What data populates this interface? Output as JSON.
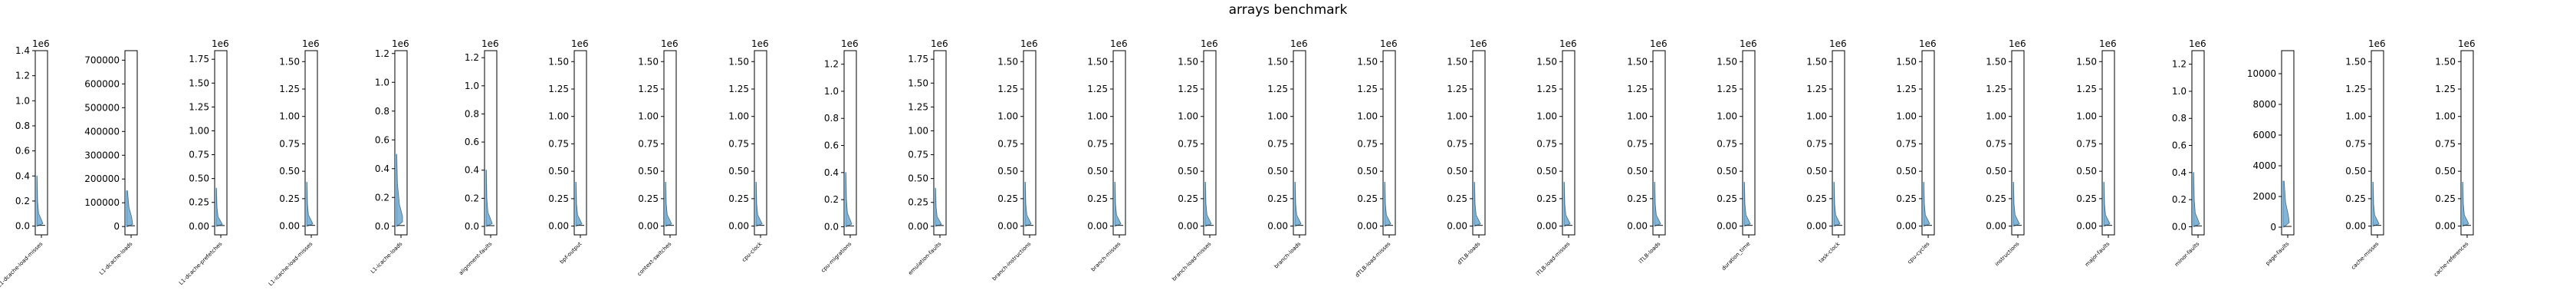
{
  "chart_data": {
    "type": "box",
    "title": "arrays benchmark",
    "color": "#1f77b4",
    "panels": [
      {
        "label": "L1-dcache-load-misses",
        "exp": "1e6",
        "ylim": [
          -0.07,
          1.4
        ],
        "ticks": [
          0.0,
          0.2,
          0.4,
          0.6,
          0.8,
          1.0,
          1.2,
          1.4
        ],
        "fmt": 1,
        "dist": [
          [
            0,
            3
          ],
          [
            0.02,
            40
          ],
          [
            0.05,
            30
          ],
          [
            0.1,
            12
          ],
          [
            0.2,
            5
          ],
          [
            0.4,
            2
          ]
        ]
      },
      {
        "label": "L1-dcache-loads",
        "exp": "",
        "ylim": [
          -35000,
          740000
        ],
        "ticks": [
          0,
          100000,
          200000,
          300000,
          400000,
          500000,
          600000,
          700000
        ],
        "fmt": 0,
        "dist": [
          [
            0,
            5
          ],
          [
            10000,
            30
          ],
          [
            40000,
            25
          ],
          [
            80000,
            12
          ],
          [
            150000,
            5
          ]
        ]
      },
      {
        "label": "L1-dcache-prefetches",
        "exp": "1e6",
        "ylim": [
          -0.09,
          1.84
        ],
        "ticks": [
          0.0,
          0.25,
          0.5,
          0.75,
          1.0,
          1.25,
          1.5,
          1.75
        ],
        "fmt": 2,
        "dist": [
          [
            0,
            3
          ],
          [
            0.02,
            40
          ],
          [
            0.05,
            30
          ],
          [
            0.1,
            12
          ],
          [
            0.2,
            5
          ],
          [
            0.4,
            2
          ]
        ]
      },
      {
        "label": "L1-icache-load-misses",
        "exp": "1e6",
        "ylim": [
          -0.08,
          1.6
        ],
        "ticks": [
          0.0,
          0.25,
          0.5,
          0.75,
          1.0,
          1.25,
          1.5
        ],
        "fmt": 2,
        "dist": [
          [
            0,
            3
          ],
          [
            0.02,
            40
          ],
          [
            0.05,
            30
          ],
          [
            0.1,
            12
          ],
          [
            0.2,
            5
          ],
          [
            0.4,
            2
          ]
        ]
      },
      {
        "label": "L1-icache-loads",
        "exp": "1e6",
        "ylim": [
          -0.06,
          1.22
        ],
        "ticks": [
          0.0,
          0.2,
          0.4,
          0.6,
          0.8,
          1.0,
          1.2
        ],
        "fmt": 1,
        "dist": [
          [
            0,
            3
          ],
          [
            0.03,
            30
          ],
          [
            0.07,
            30
          ],
          [
            0.15,
            15
          ],
          [
            0.3,
            5
          ],
          [
            0.5,
            2
          ]
        ]
      },
      {
        "label": "alignment-faults",
        "exp": "1e6",
        "ylim": [
          -0.06,
          1.25
        ],
        "ticks": [
          0.0,
          0.2,
          0.4,
          0.6,
          0.8,
          1.0,
          1.2
        ],
        "fmt": 1,
        "dist": [
          [
            0,
            3
          ],
          [
            0.02,
            40
          ],
          [
            0.05,
            30
          ],
          [
            0.1,
            12
          ],
          [
            0.2,
            5
          ],
          [
            0.4,
            2
          ]
        ]
      },
      {
        "label": "bpf-output",
        "exp": "1e6",
        "ylim": [
          -0.08,
          1.6
        ],
        "ticks": [
          0.0,
          0.25,
          0.5,
          0.75,
          1.0,
          1.25,
          1.5
        ],
        "fmt": 2,
        "dist": [
          [
            0,
            3
          ],
          [
            0.02,
            40
          ],
          [
            0.05,
            30
          ],
          [
            0.1,
            12
          ],
          [
            0.2,
            5
          ],
          [
            0.4,
            2
          ]
        ]
      },
      {
        "label": "context-switches",
        "exp": "1e6",
        "ylim": [
          -0.08,
          1.6
        ],
        "ticks": [
          0.0,
          0.25,
          0.5,
          0.75,
          1.0,
          1.25,
          1.5
        ],
        "fmt": 2,
        "dist": [
          [
            0,
            3
          ],
          [
            0.02,
            40
          ],
          [
            0.05,
            30
          ],
          [
            0.1,
            12
          ],
          [
            0.2,
            5
          ],
          [
            0.4,
            2
          ]
        ]
      },
      {
        "label": "cpu-clock",
        "exp": "1e6",
        "ylim": [
          -0.08,
          1.6
        ],
        "ticks": [
          0.0,
          0.25,
          0.5,
          0.75,
          1.0,
          1.25,
          1.5
        ],
        "fmt": 2,
        "dist": [
          [
            0,
            3
          ],
          [
            0.02,
            40
          ],
          [
            0.05,
            30
          ],
          [
            0.1,
            12
          ],
          [
            0.2,
            5
          ],
          [
            0.4,
            2
          ]
        ]
      },
      {
        "label": "cpu-migrations",
        "exp": "1e6",
        "ylim": [
          -0.06,
          1.3
        ],
        "ticks": [
          0.0,
          0.2,
          0.4,
          0.6,
          0.8,
          1.0,
          1.2
        ],
        "fmt": 1,
        "dist": [
          [
            0,
            3
          ],
          [
            0.02,
            40
          ],
          [
            0.05,
            30
          ],
          [
            0.1,
            12
          ],
          [
            0.2,
            5
          ],
          [
            0.4,
            2
          ]
        ]
      },
      {
        "label": "emulation-faults",
        "exp": "1e6",
        "ylim": [
          -0.09,
          1.84
        ],
        "ticks": [
          0.0,
          0.25,
          0.5,
          0.75,
          1.0,
          1.25,
          1.5,
          1.75
        ],
        "fmt": 2,
        "dist": [
          [
            0,
            3
          ],
          [
            0.02,
            40
          ],
          [
            0.05,
            30
          ],
          [
            0.1,
            12
          ],
          [
            0.2,
            5
          ],
          [
            0.4,
            2
          ]
        ]
      },
      {
        "label": "branch-instructions",
        "exp": "1e6",
        "ylim": [
          -0.08,
          1.6
        ],
        "ticks": [
          0.0,
          0.25,
          0.5,
          0.75,
          1.0,
          1.25,
          1.5
        ],
        "fmt": 2,
        "dist": [
          [
            0,
            3
          ],
          [
            0.02,
            40
          ],
          [
            0.05,
            30
          ],
          [
            0.1,
            12
          ],
          [
            0.2,
            5
          ],
          [
            0.4,
            2
          ]
        ]
      },
      {
        "label": "branch-misses",
        "exp": "1e6",
        "ylim": [
          -0.08,
          1.6
        ],
        "ticks": [
          0.0,
          0.25,
          0.5,
          0.75,
          1.0,
          1.25,
          1.5
        ],
        "fmt": 2,
        "dist": [
          [
            0,
            3
          ],
          [
            0.02,
            40
          ],
          [
            0.05,
            30
          ],
          [
            0.1,
            12
          ],
          [
            0.2,
            5
          ],
          [
            0.4,
            2
          ]
        ]
      },
      {
        "label": "branch-load-misses",
        "exp": "1e6",
        "ylim": [
          -0.08,
          1.6
        ],
        "ticks": [
          0.0,
          0.25,
          0.5,
          0.75,
          1.0,
          1.25,
          1.5
        ],
        "fmt": 2,
        "dist": [
          [
            0,
            3
          ],
          [
            0.02,
            40
          ],
          [
            0.05,
            30
          ],
          [
            0.1,
            12
          ],
          [
            0.2,
            5
          ],
          [
            0.4,
            2
          ]
        ]
      },
      {
        "label": "branch-loads",
        "exp": "1e6",
        "ylim": [
          -0.08,
          1.6
        ],
        "ticks": [
          0.0,
          0.25,
          0.5,
          0.75,
          1.0,
          1.25,
          1.5
        ],
        "fmt": 2,
        "dist": [
          [
            0,
            3
          ],
          [
            0.02,
            40
          ],
          [
            0.05,
            30
          ],
          [
            0.1,
            12
          ],
          [
            0.2,
            5
          ],
          [
            0.4,
            2
          ]
        ]
      },
      {
        "label": "dTLB-load-misses",
        "exp": "1e6",
        "ylim": [
          -0.08,
          1.6
        ],
        "ticks": [
          0.0,
          0.25,
          0.5,
          0.75,
          1.0,
          1.25,
          1.5
        ],
        "fmt": 2,
        "dist": [
          [
            0,
            3
          ],
          [
            0.02,
            40
          ],
          [
            0.05,
            30
          ],
          [
            0.1,
            12
          ],
          [
            0.2,
            5
          ],
          [
            0.4,
            2
          ]
        ]
      },
      {
        "label": "dTLB-loads",
        "exp": "1e6",
        "ylim": [
          -0.08,
          1.6
        ],
        "ticks": [
          0.0,
          0.25,
          0.5,
          0.75,
          1.0,
          1.25,
          1.5
        ],
        "fmt": 2,
        "dist": [
          [
            0,
            3
          ],
          [
            0.02,
            40
          ],
          [
            0.05,
            30
          ],
          [
            0.1,
            12
          ],
          [
            0.2,
            5
          ],
          [
            0.4,
            2
          ]
        ]
      },
      {
        "label": "iTLB-load-misses",
        "exp": "1e6",
        "ylim": [
          -0.08,
          1.6
        ],
        "ticks": [
          0.0,
          0.25,
          0.5,
          0.75,
          1.0,
          1.25,
          1.5
        ],
        "fmt": 2,
        "dist": [
          [
            0,
            3
          ],
          [
            0.02,
            40
          ],
          [
            0.05,
            30
          ],
          [
            0.1,
            12
          ],
          [
            0.2,
            5
          ],
          [
            0.4,
            2
          ]
        ]
      },
      {
        "label": "iTLB-loads",
        "exp": "1e6",
        "ylim": [
          -0.08,
          1.6
        ],
        "ticks": [
          0.0,
          0.25,
          0.5,
          0.75,
          1.0,
          1.25,
          1.5
        ],
        "fmt": 2,
        "dist": [
          [
            0,
            3
          ],
          [
            0.02,
            40
          ],
          [
            0.05,
            30
          ],
          [
            0.1,
            12
          ],
          [
            0.2,
            5
          ],
          [
            0.4,
            2
          ]
        ]
      },
      {
        "label": "duration_time",
        "exp": "1e6",
        "ylim": [
          -0.08,
          1.6
        ],
        "ticks": [
          0.0,
          0.25,
          0.5,
          0.75,
          1.0,
          1.25,
          1.5
        ],
        "fmt": 2,
        "dist": [
          [
            0,
            3
          ],
          [
            0.02,
            40
          ],
          [
            0.05,
            30
          ],
          [
            0.1,
            12
          ],
          [
            0.2,
            5
          ],
          [
            0.4,
            2
          ]
        ]
      },
      {
        "label": "task-clock",
        "exp": "1e6",
        "ylim": [
          -0.08,
          1.6
        ],
        "ticks": [
          0.0,
          0.25,
          0.5,
          0.75,
          1.0,
          1.25,
          1.5
        ],
        "fmt": 2,
        "dist": [
          [
            0,
            3
          ],
          [
            0.02,
            40
          ],
          [
            0.05,
            30
          ],
          [
            0.1,
            12
          ],
          [
            0.2,
            5
          ],
          [
            0.4,
            2
          ]
        ]
      },
      {
        "label": "cpu-cycles",
        "exp": "1e6",
        "ylim": [
          -0.08,
          1.6
        ],
        "ticks": [
          0.0,
          0.25,
          0.5,
          0.75,
          1.0,
          1.25,
          1.5
        ],
        "fmt": 2,
        "dist": [
          [
            0,
            3
          ],
          [
            0.02,
            40
          ],
          [
            0.05,
            30
          ],
          [
            0.1,
            12
          ],
          [
            0.2,
            5
          ],
          [
            0.4,
            2
          ]
        ]
      },
      {
        "label": "instructions",
        "exp": "1e6",
        "ylim": [
          -0.08,
          1.6
        ],
        "ticks": [
          0.0,
          0.25,
          0.5,
          0.75,
          1.0,
          1.25,
          1.5
        ],
        "fmt": 2,
        "dist": [
          [
            0,
            3
          ],
          [
            0.02,
            40
          ],
          [
            0.05,
            30
          ],
          [
            0.1,
            12
          ],
          [
            0.2,
            5
          ],
          [
            0.4,
            2
          ]
        ]
      },
      {
        "label": "major-faults",
        "exp": "1e6",
        "ylim": [
          -0.08,
          1.6
        ],
        "ticks": [
          0.0,
          0.25,
          0.5,
          0.75,
          1.0,
          1.25,
          1.5
        ],
        "fmt": 2,
        "dist": [
          [
            0,
            3
          ],
          [
            0.02,
            40
          ],
          [
            0.05,
            30
          ],
          [
            0.1,
            12
          ],
          [
            0.2,
            5
          ],
          [
            0.4,
            2
          ]
        ]
      },
      {
        "label": "minor-faults",
        "exp": "1e6",
        "ylim": [
          -0.06,
          1.3
        ],
        "ticks": [
          0.0,
          0.2,
          0.4,
          0.6,
          0.8,
          1.0,
          1.2
        ],
        "fmt": 1,
        "dist": [
          [
            0,
            3
          ],
          [
            0.02,
            40
          ],
          [
            0.05,
            30
          ],
          [
            0.1,
            12
          ],
          [
            0.2,
            5
          ],
          [
            0.4,
            2
          ]
        ]
      },
      {
        "label": "page-faults",
        "exp": "",
        "ylim": [
          -500,
          11500
        ],
        "ticks": [
          0,
          2000,
          4000,
          6000,
          8000,
          10000
        ],
        "fmt": 0,
        "dist": [
          [
            0,
            3
          ],
          [
            300,
            30
          ],
          [
            800,
            25
          ],
          [
            1600,
            12
          ],
          [
            3000,
            5
          ]
        ]
      },
      {
        "label": "cache-misses",
        "exp": "1e6",
        "ylim": [
          -0.08,
          1.6
        ],
        "ticks": [
          0.0,
          0.25,
          0.5,
          0.75,
          1.0,
          1.25,
          1.5
        ],
        "fmt": 2,
        "dist": [
          [
            0,
            3
          ],
          [
            0.02,
            40
          ],
          [
            0.05,
            30
          ],
          [
            0.1,
            12
          ],
          [
            0.2,
            5
          ],
          [
            0.4,
            2
          ]
        ]
      },
      {
        "label": "cache-references",
        "exp": "1e6",
        "ylim": [
          -0.08,
          1.6
        ],
        "ticks": [
          0.0,
          0.25,
          0.5,
          0.75,
          1.0,
          1.25,
          1.5
        ],
        "fmt": 2,
        "dist": [
          [
            0,
            3
          ],
          [
            0.02,
            40
          ],
          [
            0.05,
            30
          ],
          [
            0.1,
            12
          ],
          [
            0.2,
            5
          ],
          [
            0.4,
            2
          ]
        ]
      }
    ]
  }
}
